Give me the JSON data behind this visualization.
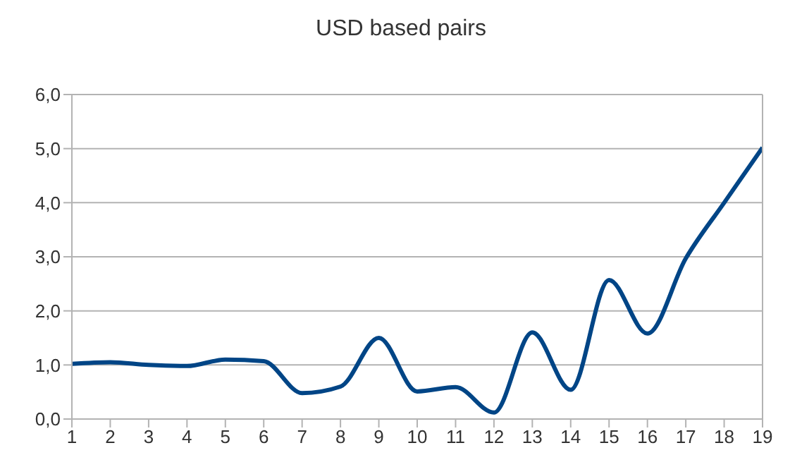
{
  "chart_data": {
    "type": "line",
    "title": "USD based pairs",
    "x": [
      1,
      2,
      3,
      4,
      5,
      6,
      7,
      8,
      9,
      10,
      11,
      12,
      13,
      14,
      15,
      16,
      17,
      18,
      19
    ],
    "series": [
      {
        "color": "#004586",
        "values": [
          1.02,
          1.05,
          1.0,
          0.98,
          1.1,
          1.07,
          0.48,
          0.6,
          1.5,
          0.51,
          0.59,
          0.12,
          1.6,
          0.54,
          2.57,
          1.58,
          2.97,
          4.0,
          5.02
        ]
      }
    ],
    "xlim": [
      1,
      19
    ],
    "xticks": [
      1,
      2,
      3,
      4,
      5,
      6,
      7,
      8,
      9,
      10,
      11,
      12,
      13,
      14,
      15,
      16,
      17,
      18,
      19
    ],
    "ylim": [
      0,
      6
    ],
    "yticks": [
      {
        "value": 0,
        "label": "0,0"
      },
      {
        "value": 1,
        "label": "1,0"
      },
      {
        "value": 2,
        "label": "2,0"
      },
      {
        "value": 3,
        "label": "3,0"
      },
      {
        "value": 4,
        "label": "4,0"
      },
      {
        "value": 5,
        "label": "5,0"
      },
      {
        "value": 6,
        "label": "6,0"
      }
    ],
    "grid": "y",
    "legend": false,
    "marker": "none",
    "line_style": "solid"
  }
}
